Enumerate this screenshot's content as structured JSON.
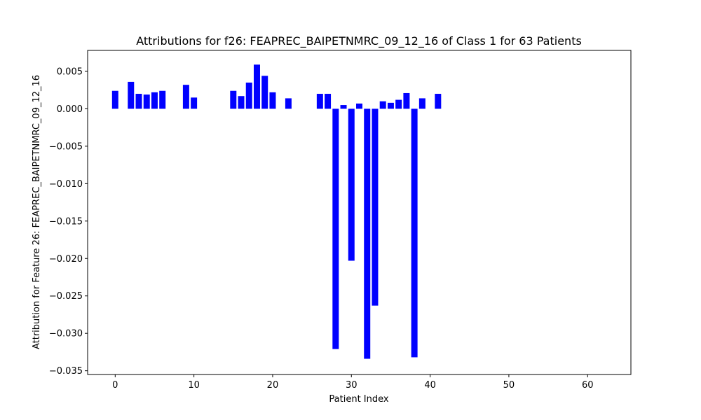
{
  "chart_data": {
    "type": "bar",
    "title": "Attributions for f26: FEAPREC_BAIPETNMRC_09_12_16 of Class 1 for 63 Patients",
    "xlabel": "Patient Index",
    "ylabel": "Attribution for Feature 26: FEAPREC_BAIPETNMRC_09_12_16",
    "xlim": [
      -3.5,
      65.5
    ],
    "ylim": [
      -0.0355,
      0.0078
    ],
    "xticks": [
      0,
      10,
      20,
      30,
      40,
      50,
      60
    ],
    "xtick_labels": [
      "0",
      "10",
      "20",
      "30",
      "40",
      "50",
      "60"
    ],
    "yticks": [
      0.005,
      0.0,
      -0.005,
      -0.01,
      -0.015,
      -0.02,
      -0.025,
      -0.03,
      -0.035
    ],
    "ytick_labels": [
      "0.005",
      "0.000",
      "−0.005",
      "−0.010",
      "−0.015",
      "−0.020",
      "−0.025",
      "−0.030",
      "−0.035"
    ],
    "bar_color": "#0000ff",
    "grid": false,
    "x": [
      0,
      1,
      2,
      3,
      4,
      5,
      6,
      7,
      8,
      9,
      10,
      11,
      12,
      13,
      14,
      15,
      16,
      17,
      18,
      19,
      20,
      21,
      22,
      23,
      24,
      25,
      26,
      27,
      28,
      29,
      30,
      31,
      32,
      33,
      34,
      35,
      36,
      37,
      38,
      39,
      40,
      41,
      42,
      43,
      44,
      45,
      46,
      47,
      48,
      49,
      50,
      51,
      52,
      53,
      54,
      55,
      56,
      57,
      58,
      59,
      60,
      61,
      62
    ],
    "values": [
      0.0024,
      0,
      0.0036,
      0.002,
      0.0019,
      0.0022,
      0.0024,
      0,
      0,
      0.0032,
      0.0015,
      0,
      0,
      0,
      0,
      0.0024,
      0.0017,
      0.0035,
      0.0059,
      0.0044,
      0.0022,
      0,
      0.0014,
      0,
      0,
      0,
      0.002,
      0.002,
      -0.0321,
      0.0005,
      -0.0203,
      0.0007,
      -0.0334,
      -0.0263,
      0.001,
      0.0008,
      0.0012,
      0.0021,
      -0.0332,
      0.0014,
      0,
      0.002,
      0,
      0,
      0,
      0,
      0,
      0,
      0,
      0,
      0,
      0,
      0,
      0,
      0,
      0,
      0,
      0,
      0,
      0,
      0,
      0,
      0
    ]
  }
}
